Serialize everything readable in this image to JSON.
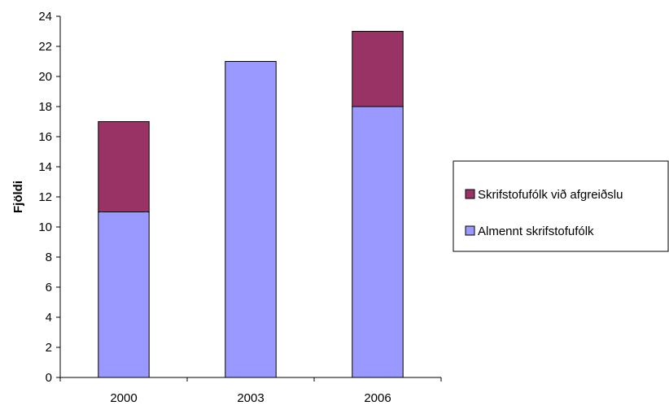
{
  "chart_data": {
    "type": "bar",
    "stacked": true,
    "categories": [
      "2000",
      "2003",
      "2006"
    ],
    "series": [
      {
        "name": "Almennt skrifstofufólk",
        "values": [
          11,
          21,
          18
        ],
        "color": "#9999ff"
      },
      {
        "name": "Skrifstofufólk við afgreiðslu",
        "values": [
          6,
          0,
          5
        ],
        "color": "#993366"
      }
    ],
    "title": "",
    "xlabel": "",
    "ylabel": "Fjöldi",
    "ylim": [
      0,
      24
    ],
    "ytick_step": 2,
    "grid": false,
    "legend_position": "right",
    "legend_order": [
      1,
      0
    ]
  }
}
